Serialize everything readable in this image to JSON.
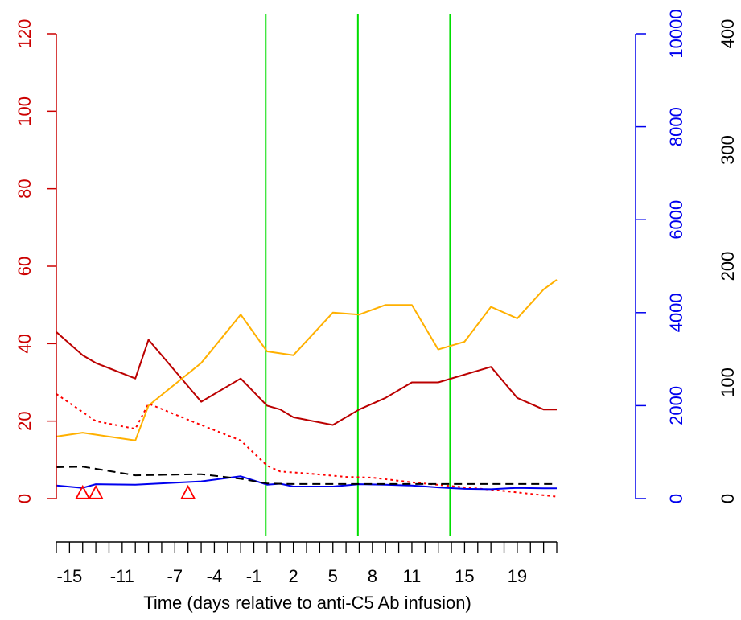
{
  "chart_data": {
    "type": "line",
    "xlabel": "Time (days relative to anti-C5 Ab infusion)",
    "xlim": [
      -16,
      22
    ],
    "x_tick_labels": [
      "-15",
      "-11",
      "-7",
      "-4",
      "-1",
      "2",
      "5",
      "8",
      "11",
      "15",
      "19"
    ],
    "x_tick_label_values": [
      -15,
      -11,
      -7,
      -4,
      -1,
      2,
      5,
      8,
      11,
      15,
      19
    ],
    "x_minor_ticks": [
      -16,
      -15,
      -14,
      -13,
      -12,
      -11,
      -10,
      -9,
      -8,
      -7,
      -6,
      -5,
      -4,
      -3,
      -2,
      -1,
      0,
      1,
      2,
      3,
      4,
      5,
      6,
      7,
      8,
      9,
      10,
      11,
      12,
      13,
      14,
      15,
      16,
      17,
      18,
      19,
      20,
      21,
      22
    ],
    "axes": {
      "left": {
        "color": "#cc0000",
        "ylim": [
          0,
          120
        ],
        "ticks": [
          "0",
          "20",
          "40",
          "60",
          "80",
          "100",
          "120"
        ]
      },
      "right_blue": {
        "color": "#0000ee",
        "ylim": [
          0,
          10000
        ],
        "ticks": [
          "0",
          "2000",
          "4000",
          "6000",
          "8000",
          "10000"
        ]
      },
      "right_black": {
        "color": "#000000",
        "ylim": [
          0,
          400
        ],
        "ticks": [
          "0",
          "100",
          "200",
          "300",
          "400"
        ]
      }
    },
    "vertical_lines": {
      "x": [
        -0.1,
        6.9,
        13.9
      ],
      "color": "#00dd00"
    },
    "series": [
      {
        "axis": "left",
        "color": "#bb0000",
        "style": "solid",
        "x": [
          -16,
          -14,
          -13,
          -10,
          -9,
          -5,
          -2,
          0,
          1,
          2,
          5,
          7,
          9,
          11,
          13,
          17,
          19,
          21,
          22
        ],
        "y": [
          43,
          37,
          35,
          31,
          41,
          25,
          31,
          24,
          23,
          21,
          19,
          23,
          26,
          30,
          30,
          34,
          26,
          23,
          23
        ]
      },
      {
        "axis": "left",
        "color": "#ff0000",
        "style": "dotted",
        "x": [
          -16,
          -13,
          -10,
          -9,
          -5,
          -2,
          0,
          1,
          3,
          6,
          8,
          11,
          15,
          17,
          22
        ],
        "y": [
          27,
          20,
          18,
          24.5,
          19,
          15,
          8.5,
          7,
          6.5,
          5.6,
          5.4,
          4.2,
          2.9,
          2.3,
          0.5
        ]
      },
      {
        "axis": "left",
        "color": "#ffb000",
        "style": "solid",
        "x": [
          -16,
          -14,
          -10,
          -9,
          -5,
          -2,
          0,
          2,
          5,
          7,
          9,
          11,
          13,
          15,
          17,
          19,
          21,
          22
        ],
        "y": [
          16,
          17,
          15,
          24,
          35,
          47.5,
          38,
          37,
          48,
          47.5,
          50,
          50,
          38.5,
          40.5,
          49.5,
          46.5,
          54,
          56.5
        ]
      },
      {
        "axis": "right_blue",
        "color": "#0000ee",
        "style": "solid",
        "x": [
          -16,
          -14,
          -13,
          -10,
          -5,
          -2,
          0,
          1,
          2,
          5,
          7,
          9,
          11,
          13,
          15,
          17,
          19,
          21,
          22
        ],
        "y": [
          280,
          230,
          310,
          300,
          370,
          480,
          300,
          320,
          260,
          260,
          310,
          300,
          280,
          240,
          210,
          200,
          230,
          220,
          220
        ]
      },
      {
        "axis": "right_black",
        "color": "#000000",
        "style": "dashed",
        "x": [
          -16,
          -14,
          -10,
          -5,
          -2,
          0,
          2,
          5,
          10,
          15,
          22
        ],
        "y": [
          27,
          27.5,
          20,
          21,
          17,
          13,
          12.5,
          12.5,
          12.5,
          12.5,
          12.5
        ]
      }
    ],
    "markers": {
      "shape": "triangle-open",
      "color": "#ff0000",
      "axis": "left",
      "points": [
        {
          "x": -14,
          "y": 1.5
        },
        {
          "x": -13,
          "y": 1.5
        },
        {
          "x": -6,
          "y": 1.5
        }
      ]
    }
  }
}
